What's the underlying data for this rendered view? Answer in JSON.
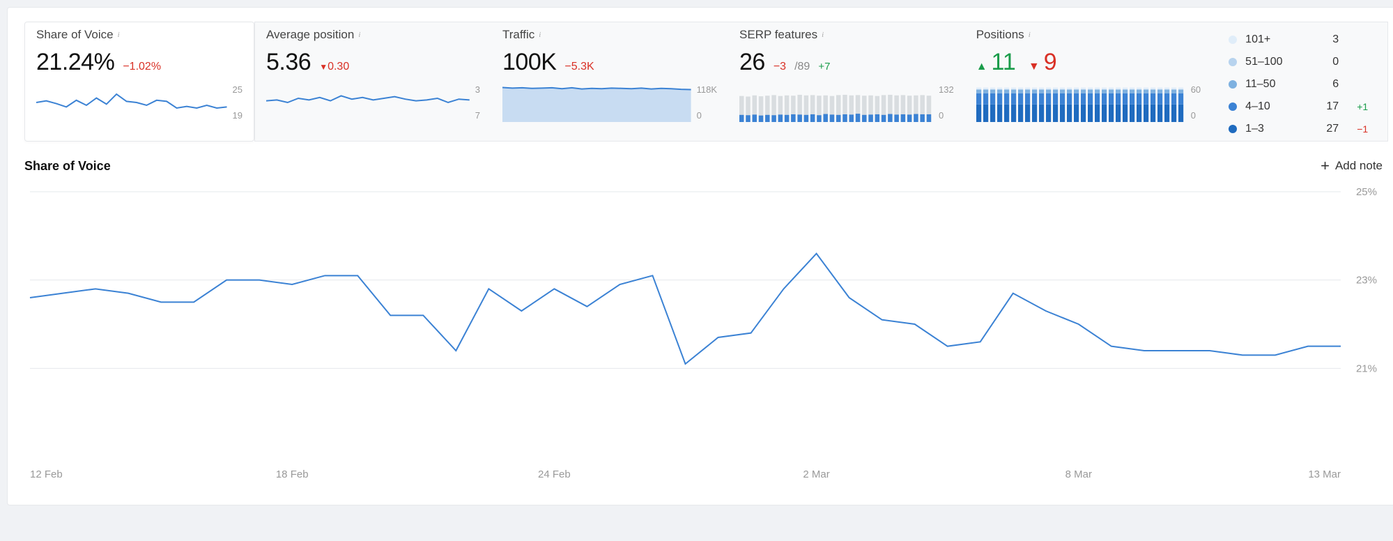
{
  "colors": {
    "primary_line": "#3b82d4",
    "area_fill": "#c8dcf2",
    "bar_muted": "#d9dde0",
    "bar_mid": "#7eb1e0",
    "bar_dark": "#3b82d4",
    "stack1": "#1f6bbf",
    "stack2": "#3b82d4",
    "stack3": "#7eb1e0",
    "stack4": "#b7d3ee",
    "stack5": "#e0edf9",
    "grid": "#e6e8eb",
    "text_muted": "#999999",
    "pos": "#1a9c4a",
    "neg": "#d93025"
  },
  "cards": {
    "sov": {
      "title": "Share of Voice",
      "value": "21.24%",
      "delta": "−1.02%",
      "delta_dir": "neg",
      "spark": {
        "type": "line",
        "ymax_label": "25",
        "ymin_label": "19",
        "points": [
          22,
          22.3,
          21.8,
          21.2,
          22.4,
          21.5,
          22.8,
          21.7,
          23.5,
          22.2,
          22.0,
          21.5,
          22.4,
          22.2,
          21.0,
          21.3,
          21.0,
          21.5,
          21.0,
          21.2
        ]
      }
    },
    "avgpos": {
      "title": "Average position",
      "value": "5.36",
      "delta": "0.30",
      "delta_dir": "neg_arrow",
      "spark": {
        "type": "line",
        "ymax_label": "3",
        "ymin_label": "7",
        "points": [
          5.2,
          5.3,
          5.0,
          5.5,
          5.3,
          5.6,
          5.2,
          5.8,
          5.4,
          5.6,
          5.3,
          5.5,
          5.7,
          5.4,
          5.2,
          5.3,
          5.5,
          5.0,
          5.4,
          5.3
        ]
      }
    },
    "traffic": {
      "title": "Traffic",
      "value": "100K",
      "delta": "−5.3K",
      "delta_dir": "neg",
      "spark": {
        "type": "area",
        "ymax_label": "118K",
        "ymin_label": "0",
        "points": [
          108,
          106,
          107,
          105,
          106,
          107,
          104,
          107,
          103,
          105,
          104,
          106,
          105,
          104,
          106,
          103,
          105,
          104,
          102,
          101
        ]
      }
    },
    "serp": {
      "title": "SERP features",
      "value": "26",
      "delta": "−3",
      "delta_dir": "neg",
      "total_label": "/89",
      "total_delta": "+7",
      "total_delta_dir": "pos",
      "spark": {
        "type": "dualbar",
        "ymax_label": "132",
        "ymin_label": "0",
        "grey": [
          88,
          86,
          90,
          87,
          89,
          91,
          88,
          90,
          89,
          92,
          90,
          91,
          89,
          90,
          88,
          91,
          92,
          90,
          91,
          89,
          90,
          88,
          91,
          92,
          90,
          91,
          89,
          90,
          91,
          89
        ],
        "blue": [
          24,
          23,
          25,
          22,
          24,
          23,
          25,
          24,
          26,
          25,
          24,
          26,
          23,
          27,
          25,
          24,
          26,
          25,
          28,
          24,
          25,
          26,
          24,
          27,
          25,
          26,
          25,
          27,
          26,
          26
        ]
      }
    },
    "positions": {
      "title": "Positions",
      "up": "11",
      "down": "9",
      "spark": {
        "type": "stackbar",
        "ymax_label": "60",
        "ymin_label": "0",
        "bars": 30,
        "stacks": [
          {
            "color_key": "stack1",
            "h": 27
          },
          {
            "color_key": "stack2",
            "h": 17
          },
          {
            "color_key": "stack3",
            "h": 6
          },
          {
            "color_key": "stack4",
            "h": 0
          },
          {
            "color_key": "stack5",
            "h": 3
          }
        ]
      },
      "legend": [
        {
          "color": "#e0edf9",
          "label": "101+",
          "count": "3",
          "delta": "",
          "dir": ""
        },
        {
          "color": "#b7d3ee",
          "label": "51–100",
          "count": "0",
          "delta": "",
          "dir": ""
        },
        {
          "color": "#7eb1e0",
          "label": "11–50",
          "count": "6",
          "delta": "",
          "dir": ""
        },
        {
          "color": "#3b82d4",
          "label": "4–10",
          "count": "17",
          "delta": "+1",
          "dir": "pos"
        },
        {
          "color": "#1f6bbf",
          "label": "1–3",
          "count": "27",
          "delta": "−1",
          "dir": "neg"
        }
      ]
    }
  },
  "main_chart": {
    "title": "Share of Voice",
    "add_note_label": "Add note",
    "type": "line",
    "ylim": [
      19,
      25
    ],
    "yticks": [
      {
        "v": 25,
        "label": "25%"
      },
      {
        "v": 23,
        "label": "23%"
      },
      {
        "v": 21,
        "label": "21%"
      }
    ],
    "xticks": [
      "12 Feb",
      "18 Feb",
      "24 Feb",
      "2 Mar",
      "8 Mar",
      "13 Mar"
    ],
    "series": [
      22.6,
      22.7,
      22.8,
      22.7,
      22.5,
      22.5,
      23.0,
      23.0,
      22.9,
      23.1,
      23.1,
      22.2,
      22.2,
      21.4,
      22.8,
      22.3,
      22.8,
      22.4,
      22.9,
      23.1,
      21.1,
      21.7,
      21.8,
      22.8,
      23.6,
      22.6,
      22.1,
      22.0,
      21.5,
      21.6,
      22.7,
      22.3,
      22.0,
      21.5,
      21.4,
      21.4,
      21.4,
      21.3,
      21.3,
      21.5,
      21.5
    ]
  }
}
